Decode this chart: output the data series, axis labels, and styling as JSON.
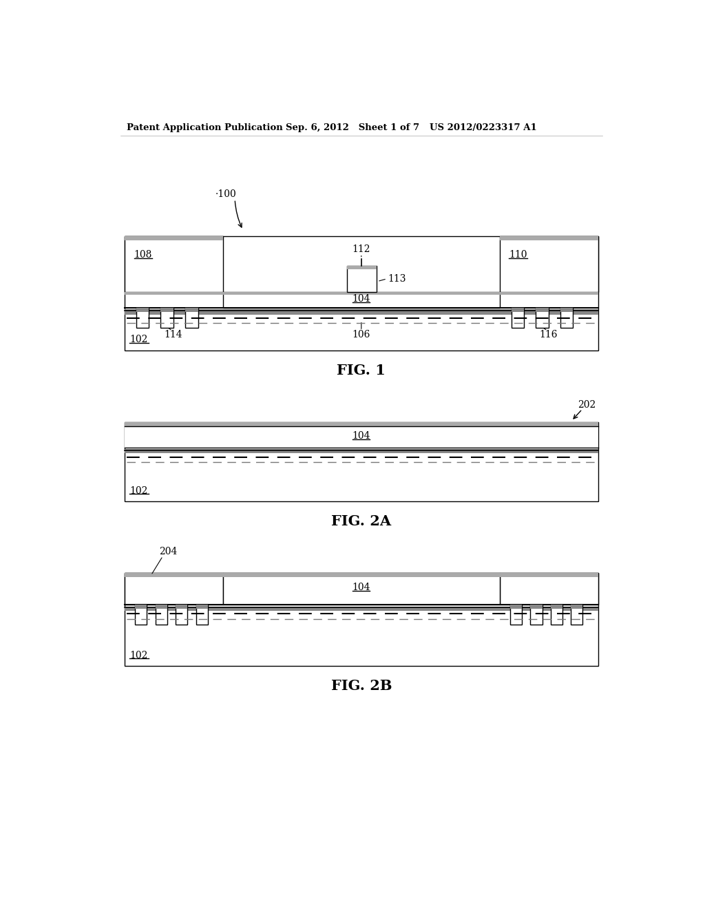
{
  "bg_color": "#ffffff",
  "header_left": "Patent Application Publication",
  "header_mid": "Sep. 6, 2012   Sheet 1 of 7",
  "header_right": "US 2012/0223317 A1",
  "fig1_label": "FIG. 1",
  "fig2a_label": "FIG. 2A",
  "fig2b_label": "FIG. 2B",
  "line_color": "#000000",
  "gray_light": "#c8c8c8",
  "gray_dark": "#444444",
  "gray_med": "#888888"
}
